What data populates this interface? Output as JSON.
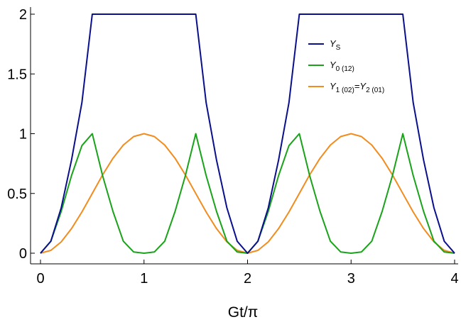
{
  "chart_data": {
    "type": "line",
    "title": "",
    "xlabel": "Gt/π",
    "ylabel": "",
    "xlim": [
      0,
      4
    ],
    "ylim": [
      0,
      2
    ],
    "xticks": [
      0,
      1,
      2,
      3,
      4
    ],
    "xtick_labels": [
      "0",
      "1",
      "2",
      "3",
      "4"
    ],
    "yticks": [
      0,
      0.5,
      1,
      1.5,
      2
    ],
    "ytick_labels": [
      "0",
      "0.5",
      "1",
      "1.5",
      "2"
    ],
    "grid": false,
    "legend_position": "top-right",
    "x": [
      0,
      0.1,
      0.2,
      0.3,
      0.4,
      0.5,
      0.6,
      0.7,
      0.8,
      0.9,
      1.0,
      1.1,
      1.2,
      1.3,
      1.4,
      1.5,
      1.6,
      1.7,
      1.8,
      1.9,
      2.0,
      2.1,
      2.2,
      2.3,
      2.4,
      2.5,
      2.6,
      2.7,
      2.8,
      2.9,
      3.0,
      3.1,
      3.2,
      3.3,
      3.4,
      3.5,
      3.6,
      3.7,
      3.8,
      3.9,
      4.0
    ],
    "series": [
      {
        "name": "Y_S",
        "legend": {
          "main": "Y",
          "sub": "S",
          "rest": ""
        },
        "color": "#0a0f8c",
        "values": [
          0,
          0.1,
          0.38,
          0.78,
          1.26,
          2,
          2,
          2,
          2,
          2,
          2,
          2,
          2,
          2,
          2,
          2,
          1.26,
          0.78,
          0.38,
          0.1,
          0,
          0.1,
          0.38,
          0.78,
          1.26,
          2,
          2,
          2,
          2,
          2,
          2,
          2,
          2,
          2,
          2,
          2,
          1.26,
          0.78,
          0.38,
          0.1,
          0
        ]
      },
      {
        "name": "Y_0(12)",
        "legend": {
          "main": "Y",
          "sub": "0 (12)",
          "rest": ""
        },
        "color": "#1aa31a",
        "values": [
          0,
          0.1,
          0.35,
          0.65,
          0.9,
          1,
          0.65,
          0.35,
          0.1,
          0.01,
          0,
          0.01,
          0.1,
          0.35,
          0.65,
          1,
          0.65,
          0.35,
          0.1,
          0.01,
          0,
          0.1,
          0.35,
          0.65,
          0.9,
          1,
          0.65,
          0.35,
          0.1,
          0.01,
          0,
          0.01,
          0.1,
          0.35,
          0.65,
          1,
          0.65,
          0.35,
          0.1,
          0.01,
          0
        ]
      },
      {
        "name": "Y_1(02)=Y_2(01)",
        "legend": {
          "main": "Y",
          "sub": "1 (02)",
          "rest": "=Y",
          "sub2": "2 (01)"
        },
        "color": "#f28c1e",
        "values": [
          0,
          0.024,
          0.095,
          0.206,
          0.345,
          0.5,
          0.655,
          0.794,
          0.905,
          0.976,
          1,
          0.976,
          0.905,
          0.794,
          0.655,
          0.5,
          0.345,
          0.206,
          0.095,
          0.024,
          0,
          0.024,
          0.095,
          0.206,
          0.345,
          0.5,
          0.655,
          0.794,
          0.905,
          0.976,
          1,
          0.976,
          0.905,
          0.794,
          0.655,
          0.5,
          0.345,
          0.206,
          0.095,
          0.024,
          0
        ]
      }
    ]
  }
}
